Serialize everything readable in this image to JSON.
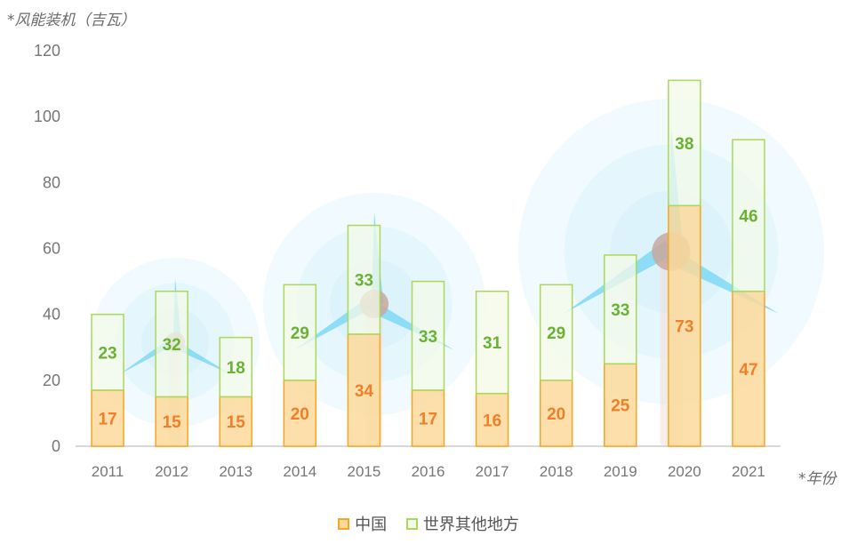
{
  "chart_data": {
    "type": "bar",
    "stacked": true,
    "title": "",
    "ylabel": "*风能装机（吉瓦）",
    "xlabel": "*年份",
    "categories": [
      "2011",
      "2012",
      "2013",
      "2014",
      "2015",
      "2016",
      "2017",
      "2018",
      "2019",
      "2020",
      "2021"
    ],
    "ylim": [
      0,
      120
    ],
    "yticks": [
      0,
      20,
      40,
      60,
      80,
      100,
      120
    ],
    "series": [
      {
        "name": "中国",
        "values": [
          17,
          15,
          15,
          20,
          34,
          17,
          16,
          20,
          25,
          73,
          47
        ],
        "fill": "#fbd99b",
        "stroke": "#f5a623",
        "label_color": "#f07f28"
      },
      {
        "name": "世界其他地方",
        "values": [
          23,
          32,
          18,
          29,
          33,
          33,
          31,
          29,
          33,
          38,
          46
        ],
        "fill": "#f3f9e8",
        "stroke": "#a9d85a",
        "label_color": "#6ab233"
      }
    ],
    "legend_position": "bottom",
    "grid": false
  },
  "colors": {
    "turbine_blade": "#7fd8f5",
    "turbine_hub": "#c8a89c",
    "halo": "#bde9fb",
    "axis": "#cccccc",
    "tick_text": "#777777"
  }
}
